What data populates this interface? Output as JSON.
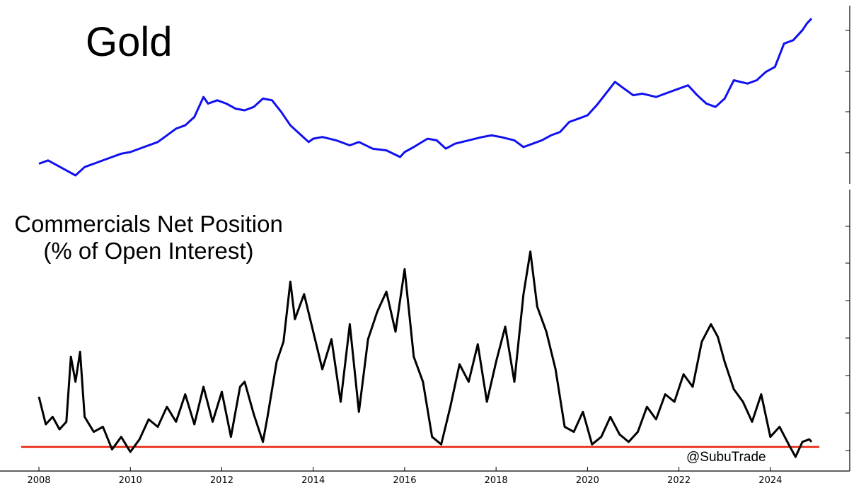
{
  "top_title": "Gold",
  "bottom_title_line1": "Commercials Net Position",
  "bottom_title_line2": "(% of Open Interest)",
  "watermark": "@SubuTrade",
  "colors": {
    "gold_line": "#1010f0",
    "net_position_line": "#000000",
    "reference_line": "#e8220a"
  },
  "chart_data": [
    {
      "type": "line",
      "title": "Gold",
      "xlim": [
        2008.0,
        2024.9
      ],
      "ylim": [
        0,
        1
      ],
      "x_ticks": [
        "2008",
        "2010",
        "2012",
        "2014",
        "2016",
        "2018",
        "2020",
        "2022",
        "2024"
      ],
      "y_tick_labels_shown": false,
      "series": [
        {
          "x": [
            2008.0,
            2008.2,
            2008.4,
            2008.6,
            2008.8,
            2009.0,
            2009.2,
            2009.5,
            2009.8,
            2010.0,
            2010.3,
            2010.6,
            2010.8,
            2011.0,
            2011.2,
            2011.4,
            2011.6,
            2011.7,
            2011.9,
            2012.1,
            2012.3,
            2012.5,
            2012.7,
            2012.9,
            2013.1,
            2013.3,
            2013.5,
            2013.7,
            2013.9,
            2014.0,
            2014.2,
            2014.5,
            2014.8,
            2015.0,
            2015.3,
            2015.6,
            2015.9,
            2016.0,
            2016.2,
            2016.5,
            2016.7,
            2016.9,
            2017.1,
            2017.4,
            2017.7,
            2017.9,
            2018.1,
            2018.4,
            2018.6,
            2018.8,
            2019.0,
            2019.2,
            2019.4,
            2019.6,
            2019.8,
            2020.0,
            2020.2,
            2020.4,
            2020.6,
            2020.8,
            2021.0,
            2021.2,
            2021.5,
            2021.8,
            2022.0,
            2022.2,
            2022.4,
            2022.6,
            2022.8,
            2023.0,
            2023.2,
            2023.5,
            2023.7,
            2023.9,
            2024.1,
            2024.3,
            2024.5,
            2024.7,
            2024.8,
            2024.9
          ],
          "values": [
            0.07,
            0.09,
            0.06,
            0.03,
            0.0,
            0.05,
            0.07,
            0.1,
            0.13,
            0.14,
            0.17,
            0.2,
            0.24,
            0.28,
            0.3,
            0.35,
            0.47,
            0.43,
            0.45,
            0.43,
            0.4,
            0.39,
            0.41,
            0.46,
            0.45,
            0.38,
            0.3,
            0.25,
            0.2,
            0.22,
            0.23,
            0.21,
            0.18,
            0.2,
            0.16,
            0.15,
            0.11,
            0.14,
            0.17,
            0.22,
            0.21,
            0.16,
            0.19,
            0.21,
            0.23,
            0.24,
            0.23,
            0.21,
            0.17,
            0.19,
            0.21,
            0.24,
            0.26,
            0.32,
            0.34,
            0.36,
            0.42,
            0.49,
            0.56,
            0.52,
            0.48,
            0.49,
            0.47,
            0.5,
            0.52,
            0.54,
            0.48,
            0.43,
            0.41,
            0.46,
            0.57,
            0.55,
            0.57,
            0.62,
            0.65,
            0.79,
            0.81,
            0.87,
            0.91,
            0.94
          ]
        }
      ]
    },
    {
      "type": "line",
      "title": "Commercials Net Position (% of Open Interest)",
      "xlim": [
        2008.0,
        2024.9
      ],
      "ylim": [
        0,
        1
      ],
      "x_ticks": [
        "2008",
        "2010",
        "2012",
        "2014",
        "2016",
        "2018",
        "2020",
        "2022",
        "2024"
      ],
      "y_tick_labels_shown": false,
      "reference_line": 0.04,
      "series": [
        {
          "x": [
            2008.0,
            2008.15,
            2008.3,
            2008.45,
            2008.6,
            2008.7,
            2008.8,
            2008.9,
            2009.0,
            2009.2,
            2009.4,
            2009.6,
            2009.8,
            2010.0,
            2010.2,
            2010.4,
            2010.6,
            2010.8,
            2011.0,
            2011.2,
            2011.4,
            2011.6,
            2011.8,
            2012.0,
            2012.2,
            2012.4,
            2012.5,
            2012.7,
            2012.9,
            2013.0,
            2013.2,
            2013.35,
            2013.5,
            2013.6,
            2013.8,
            2014.0,
            2014.2,
            2014.4,
            2014.6,
            2014.8,
            2015.0,
            2015.2,
            2015.4,
            2015.6,
            2015.8,
            2016.0,
            2016.2,
            2016.4,
            2016.6,
            2016.8,
            2017.0,
            2017.2,
            2017.4,
            2017.6,
            2017.8,
            2018.0,
            2018.2,
            2018.4,
            2018.6,
            2018.75,
            2018.9,
            2019.1,
            2019.3,
            2019.5,
            2019.7,
            2019.9,
            2020.1,
            2020.3,
            2020.5,
            2020.7,
            2020.9,
            2021.1,
            2021.3,
            2021.5,
            2021.7,
            2021.9,
            2022.1,
            2022.3,
            2022.5,
            2022.7,
            2022.85,
            2023.0,
            2023.2,
            2023.4,
            2023.6,
            2023.8,
            2024.0,
            2024.2,
            2024.4,
            2024.55,
            2024.7,
            2024.85,
            2024.9
          ],
          "values": [
            0.24,
            0.13,
            0.16,
            0.11,
            0.14,
            0.4,
            0.3,
            0.42,
            0.16,
            0.1,
            0.12,
            0.03,
            0.08,
            0.02,
            0.07,
            0.15,
            0.12,
            0.2,
            0.14,
            0.25,
            0.13,
            0.28,
            0.14,
            0.26,
            0.08,
            0.28,
            0.3,
            0.17,
            0.06,
            0.16,
            0.38,
            0.46,
            0.7,
            0.55,
            0.65,
            0.5,
            0.35,
            0.47,
            0.22,
            0.53,
            0.18,
            0.47,
            0.58,
            0.66,
            0.5,
            0.75,
            0.4,
            0.3,
            0.08,
            0.05,
            0.2,
            0.37,
            0.3,
            0.45,
            0.22,
            0.38,
            0.52,
            0.3,
            0.65,
            0.82,
            0.6,
            0.5,
            0.35,
            0.12,
            0.1,
            0.18,
            0.05,
            0.08,
            0.16,
            0.09,
            0.06,
            0.1,
            0.2,
            0.15,
            0.25,
            0.22,
            0.33,
            0.28,
            0.46,
            0.53,
            0.48,
            0.38,
            0.27,
            0.22,
            0.14,
            0.25,
            0.08,
            0.12,
            0.05,
            0.0,
            0.06,
            0.07,
            0.06
          ]
        }
      ]
    }
  ]
}
